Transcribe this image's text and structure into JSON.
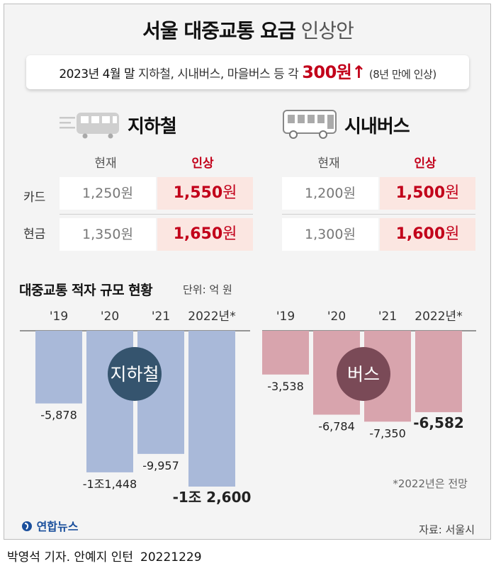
{
  "header": {
    "title_bold": "서울 대중교통 요금",
    "title_light": "인상안"
  },
  "banner": {
    "date_text": "2023년 4월 말",
    "scope_text": "지하철, 시내버스, 마을버스 등 각",
    "amount": "300원",
    "arrow": "↑",
    "note": "(8년 만에 인상)"
  },
  "fares": {
    "columns": [
      "현재",
      "인상"
    ],
    "rows": [
      "카드",
      "현금"
    ],
    "subway": {
      "label": "지하철",
      "card": {
        "current": "1,250",
        "new": "1,550"
      },
      "cash": {
        "current": "1,350",
        "new": "1,650"
      }
    },
    "bus": {
      "label": "시내버스",
      "card": {
        "current": "1,200",
        "new": "1,500"
      },
      "cash": {
        "current": "1,300",
        "new": "1,600"
      }
    },
    "unit": "원"
  },
  "chart_section": {
    "title": "대중교통 적자 규모 현황",
    "unit_note": "단위: 억 원",
    "footnote": "*2022년은 전망"
  },
  "chart_data": [
    {
      "type": "bar",
      "name": "지하철",
      "categories": [
        "'19",
        "'20",
        "'21",
        "2022년*"
      ],
      "values": [
        -5878,
        -11448,
        -9957,
        -12600
      ],
      "value_labels": [
        "-5,878",
        "-1조1,448",
        "-9,957",
        "-1조 2,600"
      ],
      "color": "#a9b9d9",
      "badge_color": "#35546e"
    },
    {
      "type": "bar",
      "name": "버스",
      "categories": [
        "'19",
        "'20",
        "'21",
        "2022년*"
      ],
      "values": [
        -3538,
        -6784,
        -7350,
        -6582
      ],
      "value_labels": [
        "-3,538",
        "-6,784",
        "-7,350",
        "-6,582"
      ],
      "color": "#d8a4ad",
      "badge_color": "#7a4a57"
    }
  ],
  "footer": {
    "logo": "연합뉴스",
    "source": "자료: 서울시",
    "credit": "박영석 기자. 안예지 인턴",
    "date": "20221229"
  },
  "colors": {
    "accent_red": "#c2001a",
    "subway_bar": "#a9b9d9",
    "bus_bar": "#d8a4ad"
  }
}
